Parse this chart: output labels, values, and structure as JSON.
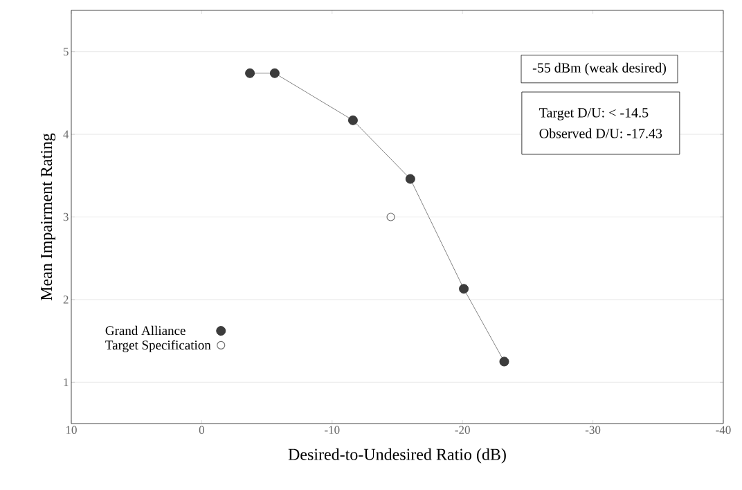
{
  "chart_data": {
    "type": "line",
    "xlabel": "Desired-to-Undesired Ratio (dB)",
    "ylabel": "Mean Impairment Rating",
    "xlim": [
      10,
      -40
    ],
    "xticks": [
      10,
      0,
      -10,
      -20,
      -30,
      -40
    ],
    "ylim": [
      0.5,
      5.5
    ],
    "yticks": [
      1,
      2,
      3,
      4,
      5
    ],
    "grid": "y",
    "legend": "bottom left",
    "series": [
      {
        "name": "Grand Alliance",
        "color": "#3c3c3c",
        "marker": "circle",
        "x": [
          -3.7,
          -5.6,
          -11.6,
          -16.0,
          -20.1,
          -23.2
        ],
        "values": [
          4.74,
          4.74,
          4.17,
          3.46,
          2.13,
          1.25
        ]
      },
      {
        "name": "Target Specification",
        "type": "scatter",
        "color": "#707070",
        "marker": "circle",
        "x": [
          -14.5
        ],
        "values": [
          3.0
        ]
      }
    ],
    "annotations": [
      "-55 dBm (weak desired)",
      "Target D/U:   < -14.5",
      "Observed D/U:   -17.43"
    ]
  }
}
